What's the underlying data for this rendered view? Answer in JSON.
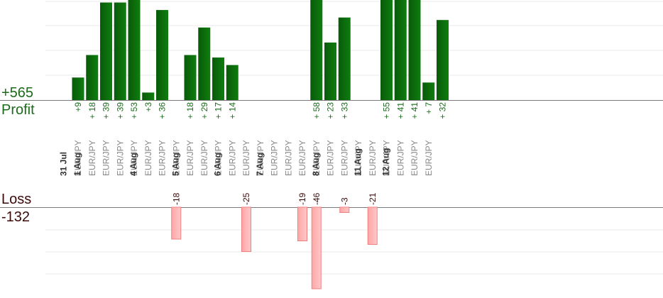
{
  "summary": {
    "profit_total": "+565",
    "profit_label": "Profit",
    "loss_label": "Loss",
    "loss_total": "-132"
  },
  "colors": {
    "profit_bar": "#0b6a0b",
    "profit_text": "#1a6b1a",
    "loss_bar": "#ffb3b3",
    "loss_bar_border": "#f08080",
    "loss_text": "#3a0a0a",
    "date_text": "#333333",
    "pair_text": "#888888",
    "grid": "#e8e8e8",
    "axis": "#7a7a7a"
  },
  "chart_data": {
    "type": "bar",
    "categories": [
      {
        "date": "31 Jul",
        "pairs": [
          "EUR/JPY"
        ]
      },
      {
        "date": "1 Aug",
        "pairs": [
          "EUR/JPY",
          "EUR/JPY",
          "EUR/JPY",
          "EUR/JPY"
        ]
      },
      {
        "date": "4 Aug",
        "pairs": [
          "EUR/JPY",
          "EUR/JPY",
          "EUR/JPY"
        ]
      },
      {
        "date": "5 Aug",
        "pairs": [
          "EUR/JPY",
          "EUR/JPY",
          "EUR/JPY"
        ]
      },
      {
        "date": "6 Aug",
        "pairs": [
          "EUR/JPY",
          "EUR/JPY",
          "EUR/JPY"
        ]
      },
      {
        "date": "7 Aug",
        "pairs": [
          "EUR/JPY",
          "EUR/JPY",
          "EUR/JPY",
          "EUR/JPY"
        ]
      },
      {
        "date": "8 Aug",
        "pairs": [
          "EUR/JPY",
          "EUR/JPY",
          "EUR/JPY"
        ]
      },
      {
        "date": "11 Aug",
        "pairs": [
          "EUR/JPY",
          "EUR/JPY"
        ]
      },
      {
        "date": "12 Aug",
        "pairs": [
          "EUR/JPY",
          "EUR/JPY",
          "EUR/JPY"
        ]
      }
    ],
    "profits": [
      {
        "trade": 0,
        "value": 9,
        "label": "+9"
      },
      {
        "trade": 1,
        "value": 18,
        "label": "+ 18"
      },
      {
        "trade": 2,
        "value": 39,
        "label": "+ 39"
      },
      {
        "trade": 3,
        "value": 39,
        "label": "+ 39"
      },
      {
        "trade": 4,
        "value": 53,
        "label": "+ 53"
      },
      {
        "trade": 5,
        "value": 3,
        "label": "+3"
      },
      {
        "trade": 6,
        "value": 36,
        "label": "+ 36"
      },
      {
        "trade": 8,
        "value": 18,
        "label": "+ 18"
      },
      {
        "trade": 9,
        "value": 29,
        "label": "+ 29"
      },
      {
        "trade": 10,
        "value": 17,
        "label": "+ 17"
      },
      {
        "trade": 11,
        "value": 14,
        "label": "+ 14"
      },
      {
        "trade": 17,
        "value": 58,
        "label": "+ 58"
      },
      {
        "trade": 18,
        "value": 23,
        "label": "+ 23"
      },
      {
        "trade": 19,
        "value": 33,
        "label": "+ 33"
      },
      {
        "trade": 22,
        "value": 55,
        "label": "+ 55"
      },
      {
        "trade": 23,
        "value": 41,
        "label": "+ 41"
      },
      {
        "trade": 24,
        "value": 41,
        "label": "+ 41"
      },
      {
        "trade": 25,
        "value": 7,
        "label": "+ 7"
      },
      {
        "trade": 26,
        "value": 32,
        "label": "+ 32"
      }
    ],
    "losses": [
      {
        "trade": 7,
        "value": -18,
        "label": "-18"
      },
      {
        "trade": 12,
        "value": -25,
        "label": "-25"
      },
      {
        "trade": 16,
        "value": -19,
        "label": "-19"
      },
      {
        "trade": 17,
        "value": -46,
        "label": "-46"
      },
      {
        "trade": 19,
        "value": -3,
        "label": "-3"
      },
      {
        "trade": 21,
        "value": -21,
        "label": "-21"
      }
    ],
    "profit_scale_max": 40,
    "loss_scale_max": 46,
    "grid": true
  }
}
